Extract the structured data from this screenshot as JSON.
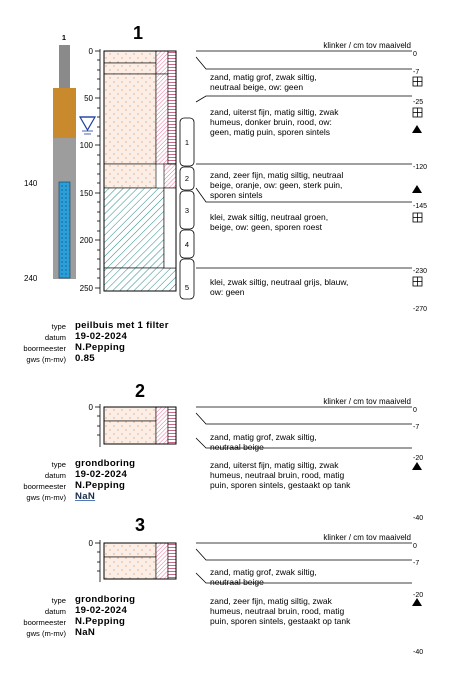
{
  "header_label": "klinker / cm tov maaiveld",
  "meta_labels": {
    "type": "type",
    "datum": "datum",
    "boormeester": "boormeester",
    "gws": "gws (m-mv)"
  },
  "colors": {
    "sand_fill": "#fbeee6",
    "sand_dot": "#e8a273",
    "clay_hatch": "#2a8a8a",
    "pink": "#e63c7a",
    "water": "#2b9fd8",
    "bentonite": "#c98a2e",
    "pipe": "#8a8a8a"
  },
  "well": {
    "label": "1",
    "depth_top": "140",
    "depth_bottom": "240",
    "water_symbol": "groundwater-triangle"
  },
  "borings": [
    {
      "number": "1",
      "axis_ticks": [
        "0",
        "50",
        "100",
        "150",
        "200",
        "250"
      ],
      "layers": [
        {
          "top": "0",
          "desc": "zand, matig grof, zwak siltig, neutraal beige, ow: geen",
          "symbol": "grid"
        },
        {
          "top": "-7",
          "desc": "zand, uiterst fijn, matig siltig, zwak humeus, donker bruin, rood, ow: geen, matig puin, sporen sintels",
          "symbol": "grid"
        },
        {
          "top": "-25",
          "desc": "",
          "symbol": "triangle"
        },
        {
          "top": "-120",
          "desc": "zand, zeer fijn, matig siltig, neutraal beige, oranje, ow: geen, sterk puin, sporen sintels",
          "symbol": "triangle"
        },
        {
          "top": "-145",
          "desc": "klei, zwak siltig, neutraal groen, beige, ow: geen, sporen roest",
          "symbol": "grid"
        },
        {
          "top": "-230",
          "desc": "klei, zwak siltig, neutraal grijs, blauw, ow: geen",
          "symbol": "grid"
        }
      ],
      "bottom": "-270",
      "samples": [
        "1",
        "2",
        "3",
        "4",
        "5"
      ],
      "meta": {
        "type": "peilbuis met 1 filter",
        "datum": "19-02-2024",
        "boormeester": "N.Pepping",
        "gws": "0.85"
      }
    },
    {
      "number": "2",
      "axis_ticks": [
        "0"
      ],
      "layers": [
        {
          "top": "0",
          "desc": "zand, matig grof, zwak siltig, neutraal beige"
        },
        {
          "top": "-7",
          "desc": ""
        },
        {
          "top": "-20",
          "desc": "zand, uiterst fijn, matig siltig, zwak humeus, neutraal bruin, rood, matig puin, sporen sintels, gestaakt op tank",
          "symbol": "triangle"
        }
      ],
      "bottom": "-40",
      "meta": {
        "type": "grondboring",
        "datum": "19-02-2024",
        "boormeester": "N.Pepping",
        "gws": "NaN"
      }
    },
    {
      "number": "3",
      "axis_ticks": [
        "0"
      ],
      "layers": [
        {
          "top": "0",
          "desc": "zand, matig grof, zwak siltig, neutraal beige"
        },
        {
          "top": "-7",
          "desc": ""
        },
        {
          "top": "-20",
          "desc": "zand, zeer fijn, matig siltig, zwak humeus, neutraal bruin, rood, matig puin, sporen sintels, gestaakt op tank",
          "symbol": "triangle"
        }
      ],
      "bottom": "-40",
      "meta": {
        "type": "grondboring",
        "datum": "19-02-2024",
        "boormeester": "N.Pepping",
        "gws": "NaN"
      }
    }
  ]
}
